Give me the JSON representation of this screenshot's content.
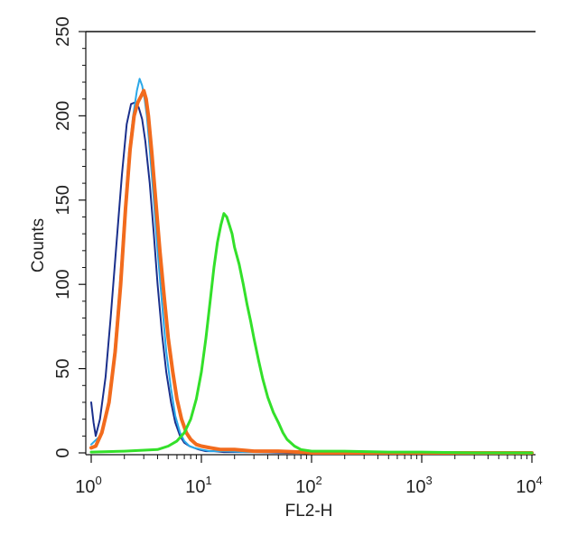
{
  "chart_data": {
    "type": "line",
    "xlabel": "FL2-H",
    "ylabel": "Counts",
    "xscale": "log",
    "xlim": [
      1,
      10000
    ],
    "ylim": [
      0,
      250
    ],
    "y_ticks": [
      0,
      50,
      100,
      150,
      200,
      250
    ],
    "x_ticks": [
      {
        "base": "10",
        "exp": "0"
      },
      {
        "base": "10",
        "exp": "1"
      },
      {
        "base": "10",
        "exp": "2"
      },
      {
        "base": "10",
        "exp": "3"
      },
      {
        "base": "10",
        "exp": "4"
      }
    ],
    "grid": false,
    "series": [
      {
        "color": "#1a2f8c",
        "x": [
          1.0,
          1.05,
          1.1,
          1.2,
          1.35,
          1.5,
          1.7,
          1.9,
          2.1,
          2.3,
          2.5,
          2.7,
          2.9,
          3.1,
          3.4,
          3.7,
          4.0,
          4.4,
          4.8,
          5.3,
          5.8,
          6.4,
          7.0,
          7.8,
          8.6,
          9.5,
          11,
          13,
          16,
          20,
          30,
          60,
          100,
          1000,
          10000
        ],
        "y": [
          30,
          18,
          10,
          20,
          45,
          80,
          125,
          165,
          195,
          207,
          208,
          205,
          198,
          185,
          160,
          130,
          100,
          70,
          48,
          30,
          18,
          10,
          6,
          4,
          3,
          2,
          1,
          1,
          0.5,
          0.5,
          0.5,
          0,
          0,
          0,
          0
        ]
      },
      {
        "color": "#2aa8e8",
        "x": [
          1.0,
          1.2,
          1.4,
          1.6,
          1.8,
          2.0,
          2.2,
          2.4,
          2.6,
          2.75,
          2.9,
          3.05,
          3.2,
          3.4,
          3.7,
          4.0,
          4.4,
          4.8,
          5.3,
          5.8,
          6.4,
          7.0,
          7.8,
          8.6,
          10,
          12,
          16,
          25,
          50,
          100,
          1000,
          10000
        ],
        "y": [
          5,
          10,
          25,
          55,
          95,
          140,
          178,
          200,
          215,
          222,
          218,
          210,
          200,
          180,
          150,
          120,
          88,
          60,
          38,
          22,
          12,
          7,
          4,
          3,
          2,
          1,
          1,
          0.5,
          0.5,
          0,
          0,
          0
        ]
      },
      {
        "color": "#f26b1d",
        "x": [
          1.0,
          1.1,
          1.25,
          1.45,
          1.65,
          1.85,
          2.05,
          2.25,
          2.45,
          2.65,
          2.85,
          3.0,
          3.15,
          3.3,
          3.55,
          3.85,
          4.2,
          4.6,
          5.0,
          5.5,
          6.0,
          6.6,
          7.3,
          8.0,
          9.0,
          10,
          12,
          15,
          20,
          30,
          50,
          80,
          100,
          1000,
          10000
        ],
        "y": [
          3,
          4,
          12,
          30,
          60,
          100,
          145,
          180,
          200,
          208,
          212,
          215,
          210,
          200,
          178,
          150,
          120,
          92,
          68,
          48,
          32,
          20,
          12,
          8,
          5,
          4,
          3,
          2,
          2,
          1,
          1,
          0.5,
          0,
          0,
          0
        ]
      },
      {
        "color": "#33e02a",
        "x": [
          1.0,
          2,
          4,
          5,
          6,
          7,
          8,
          9,
          10,
          11,
          12,
          13,
          14,
          15,
          16,
          17,
          18,
          19,
          20,
          22,
          24,
          26,
          28,
          30,
          33,
          36,
          40,
          45,
          50,
          55,
          60,
          70,
          80,
          100,
          200,
          500,
          1000,
          3000,
          10000
        ],
        "y": [
          0.5,
          1,
          2,
          4,
          7,
          12,
          20,
          32,
          48,
          68,
          90,
          110,
          125,
          135,
          142,
          140,
          135,
          130,
          122,
          112,
          100,
          88,
          78,
          68,
          55,
          44,
          33,
          24,
          18,
          12,
          8,
          4,
          2,
          1,
          1,
          0.5,
          0.5,
          0,
          0
        ]
      }
    ]
  }
}
